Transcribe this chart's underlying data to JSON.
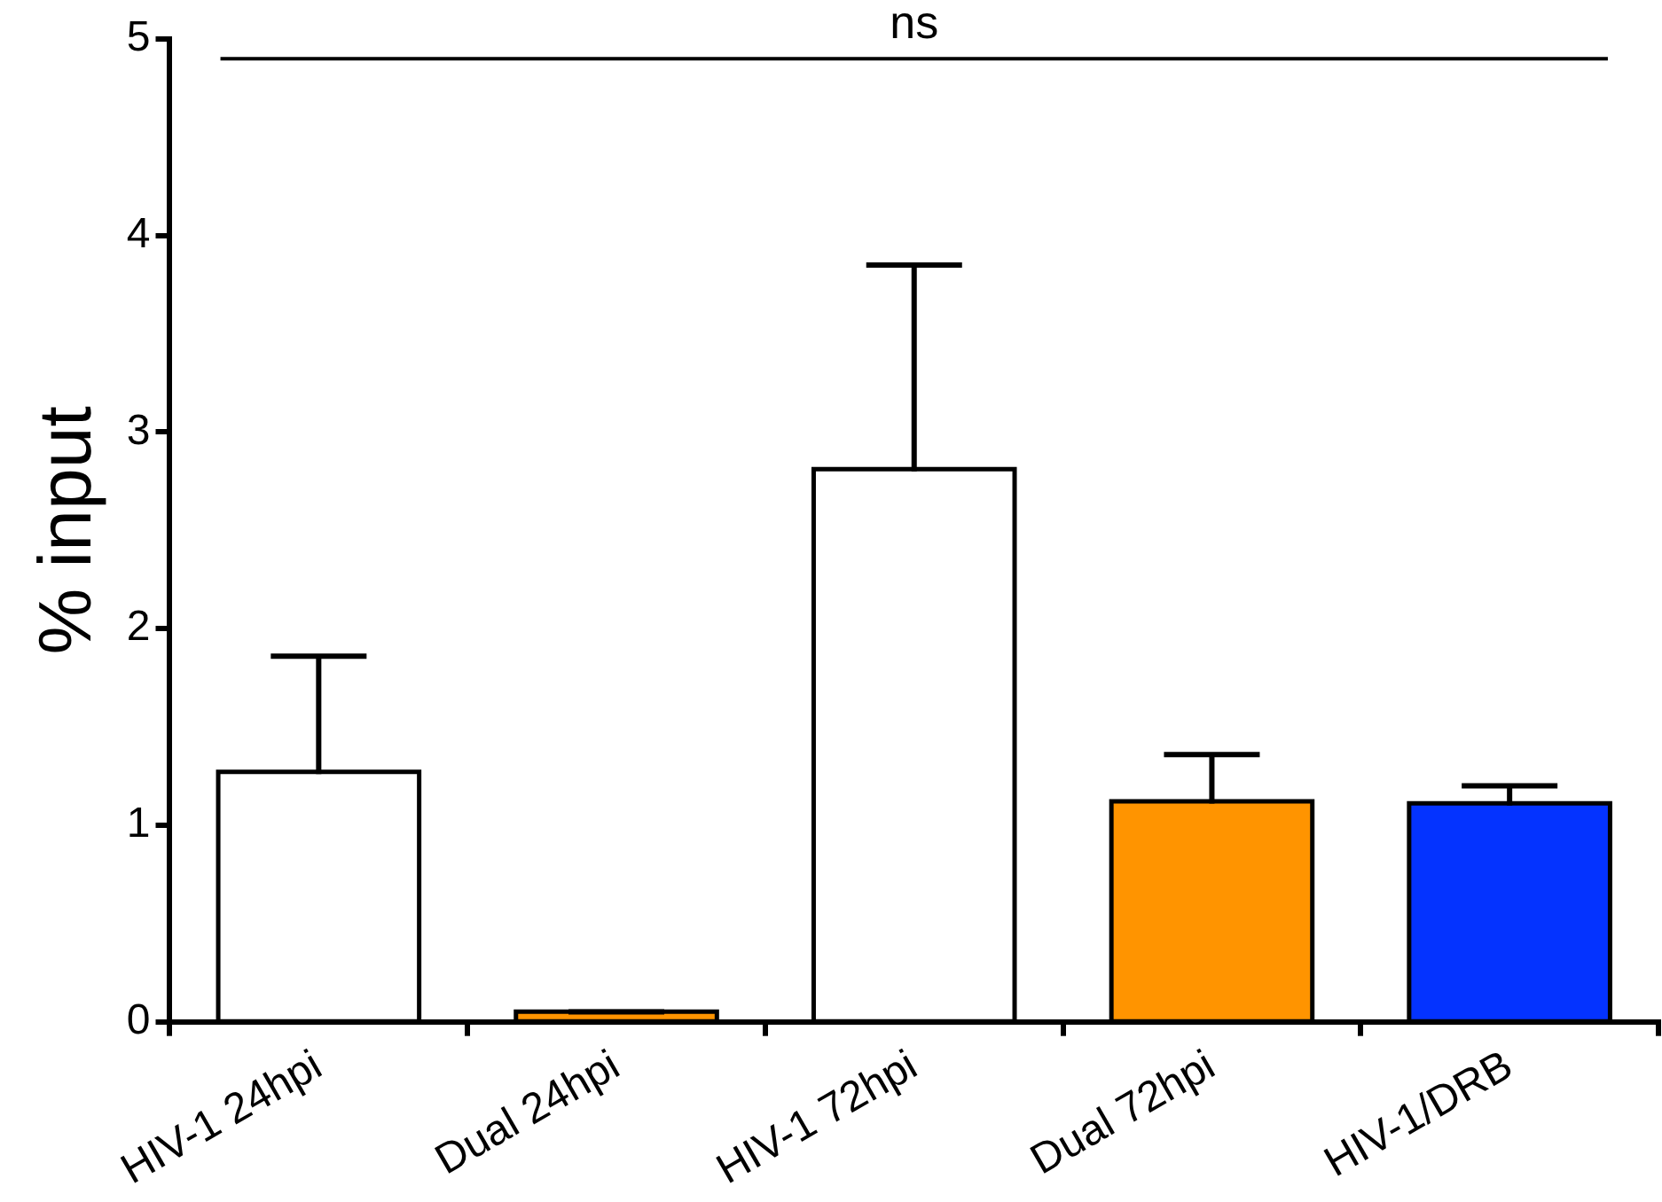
{
  "chart_data": {
    "type": "bar",
    "ylabel": "% input",
    "categories": [
      "HIV-1 24hpi",
      "Dual 24hpi",
      "HIV-1 72hpi",
      "Dual 72hpi",
      "HIV-1/DRB"
    ],
    "values": [
      1.26,
      0.04,
      2.8,
      1.11,
      1.1
    ],
    "colors": [
      "#ffffff",
      "#ff9400",
      "#ffffff",
      "#ff9400",
      "#0433ff"
    ],
    "errors": [
      0.6,
      0.01,
      1.05,
      0.25,
      0.1
    ],
    "ylim": [
      0,
      5
    ],
    "yticks": [
      0,
      1,
      2,
      3,
      4,
      5
    ],
    "grid": false,
    "legend": false,
    "ref_lines": [
      {
        "axis": "y",
        "value": 4.9,
        "label": "ns"
      }
    ]
  }
}
